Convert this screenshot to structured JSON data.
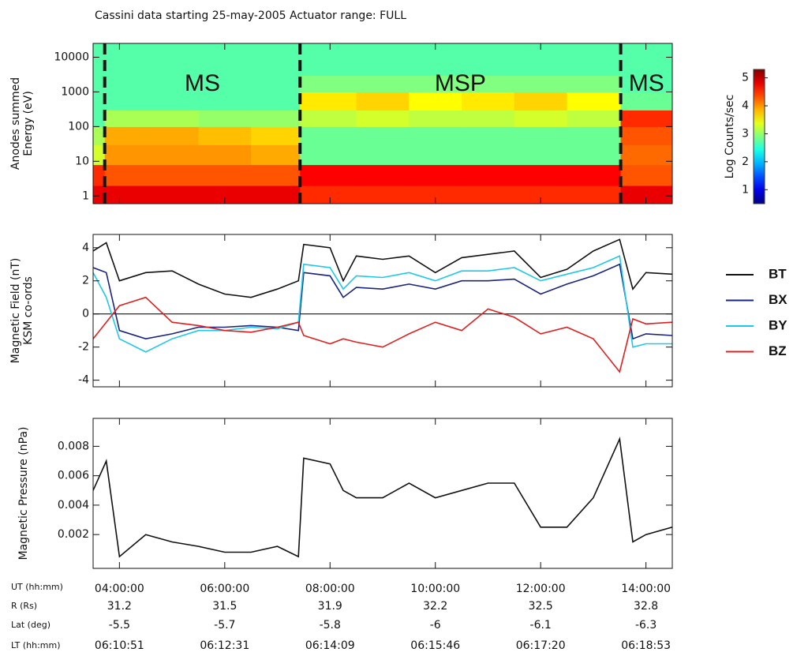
{
  "title": "Cassini data starting 25-may-2005  Actuator range: FULL",
  "chart_data": [
    {
      "type": "heatmap",
      "y_label": [
        "Anodes summed",
        "Energy (eV)"
      ],
      "ylog": true,
      "xlim": [
        3.5,
        14.5
      ],
      "xticks": [
        4,
        6,
        8,
        10,
        12,
        14
      ],
      "ylim": [
        0.6,
        25000
      ],
      "yticks": [
        1,
        10,
        100,
        1000,
        10000
      ],
      "x_edges": [
        3.5,
        3.72,
        4.5,
        5.5,
        6.5,
        7.43,
        8.5,
        9.5,
        10.5,
        11.5,
        12.5,
        13.52,
        14.5
      ],
      "y_edges": [
        0.6,
        2,
        8,
        30,
        100,
        300,
        1000,
        3000,
        25000
      ],
      "z": [
        [
          4.8,
          4.8,
          4.8,
          4.8,
          4.8,
          4.5,
          4.5,
          4.5,
          4.5,
          4.5,
          4.5,
          4.8
        ],
        [
          4.5,
          4.3,
          4.3,
          4.3,
          4.3,
          4.7,
          4.7,
          4.7,
          4.7,
          4.7,
          4.7,
          4.3
        ],
        [
          3.3,
          4.0,
          4.0,
          4.0,
          3.9,
          2.8,
          2.8,
          2.8,
          2.8,
          2.8,
          2.8,
          4.2
        ],
        [
          3.1,
          3.9,
          3.9,
          3.8,
          3.7,
          2.8,
          2.8,
          2.8,
          2.8,
          2.8,
          2.8,
          4.3
        ],
        [
          2.7,
          3.1,
          3.1,
          3.0,
          3.0,
          3.2,
          3.3,
          3.2,
          3.2,
          3.3,
          3.2,
          4.5
        ],
        [
          2.7,
          2.7,
          2.7,
          2.7,
          2.7,
          3.6,
          3.7,
          3.5,
          3.6,
          3.7,
          3.5,
          2.8
        ],
        [
          2.7,
          2.7,
          2.7,
          2.7,
          2.7,
          2.9,
          2.9,
          2.9,
          2.9,
          2.9,
          2.9,
          2.7
        ],
        [
          2.7,
          2.7,
          2.7,
          2.7,
          2.7,
          2.7,
          2.7,
          2.7,
          2.7,
          2.7,
          2.7,
          2.7
        ]
      ],
      "colorbar": {
        "label": "Log Counts/sec",
        "lim": [
          0.5,
          5.3
        ],
        "ticks": [
          1,
          2,
          3,
          4,
          5
        ]
      },
      "regions": [
        {
          "label": "MS",
          "start": 3.72,
          "end": 7.43
        },
        {
          "label": "MSP",
          "start": 7.43,
          "end": 13.52
        },
        {
          "label": "MS",
          "start": 13.52,
          "end": 14.5
        }
      ]
    },
    {
      "type": "line",
      "y_label": [
        "Magnetic Field (nT)",
        "KSM co-ords"
      ],
      "xlim": [
        3.5,
        14.5
      ],
      "xticks": [
        4,
        6,
        8,
        10,
        12,
        14
      ],
      "ylim": [
        -4.4,
        4.8
      ],
      "yticks": [
        -4,
        -2,
        0,
        2,
        4
      ],
      "zero_line": true,
      "x": [
        3.5,
        3.75,
        4,
        4.5,
        5,
        5.5,
        6,
        6.5,
        7,
        7.4,
        7.5,
        8,
        8.25,
        8.5,
        9,
        9.5,
        10,
        10.5,
        11,
        11.5,
        12,
        12.5,
        13,
        13.5,
        13.75,
        14,
        14.5
      ],
      "series": [
        {
          "name": "BT",
          "color": "#111111",
          "values": [
            3.8,
            4.3,
            2,
            2.5,
            2.6,
            1.8,
            1.2,
            1.0,
            1.5,
            2.0,
            4.2,
            4.0,
            2.0,
            3.5,
            3.3,
            3.5,
            2.5,
            3.4,
            3.6,
            3.8,
            2.2,
            2.7,
            3.8,
            4.5,
            1.5,
            2.5,
            2.4
          ]
        },
        {
          "name": "BX",
          "color": "#1a237e",
          "values": [
            2.8,
            2.5,
            -1.0,
            -1.5,
            -1.2,
            -0.8,
            -0.8,
            -0.7,
            -0.8,
            -1.0,
            2.5,
            2.3,
            1.0,
            1.6,
            1.5,
            1.8,
            1.5,
            2.0,
            2.0,
            2.1,
            1.2,
            1.8,
            2.3,
            3.0,
            -1.5,
            -1.2,
            -1.3
          ]
        },
        {
          "name": "BY",
          "color": "#1ec8e8",
          "values": [
            2.5,
            1.0,
            -1.5,
            -2.3,
            -1.5,
            -1.0,
            -1.0,
            -0.8,
            -0.9,
            -0.5,
            3.0,
            2.8,
            1.5,
            2.3,
            2.2,
            2.5,
            2.0,
            2.6,
            2.6,
            2.8,
            2.0,
            2.4,
            2.8,
            3.5,
            -2.0,
            -1.8,
            -1.8
          ]
        },
        {
          "name": "BZ",
          "color": "#e02020",
          "values": [
            -1.5,
            -0.5,
            0.5,
            1.0,
            -0.5,
            -0.7,
            -1.0,
            -1.1,
            -0.8,
            -0.5,
            -1.3,
            -1.8,
            -1.5,
            -1.7,
            -2.0,
            -1.2,
            -0.5,
            -1.0,
            0.3,
            -0.2,
            -1.2,
            -0.8,
            -1.5,
            -3.5,
            -0.3,
            -0.6,
            -0.5
          ]
        }
      ]
    },
    {
      "type": "line",
      "y_label": [
        "Magnetic Pressure (nPa)"
      ],
      "xlim": [
        3.5,
        14.5
      ],
      "xticks": [
        {
          "value": 4,
          "label": "04:00:00"
        },
        {
          "value": 6,
          "label": "06:00:00"
        },
        {
          "value": 8,
          "label": "08:00:00"
        },
        {
          "value": 10,
          "label": "10:00:00"
        },
        {
          "value": 12,
          "label": "12:00:00"
        },
        {
          "value": 14,
          "label": "14:00:00"
        }
      ],
      "ylim": [
        -0.0003,
        0.0099
      ],
      "yticks": [
        0.002,
        0.004,
        0.006,
        0.008
      ],
      "x": [
        3.5,
        3.75,
        4,
        4.5,
        5,
        5.5,
        6,
        6.5,
        7,
        7.4,
        7.5,
        8,
        8.25,
        8.5,
        9,
        9.5,
        10,
        10.5,
        11,
        11.5,
        12,
        12.5,
        13,
        13.5,
        13.75,
        14,
        14.5
      ],
      "series": [
        {
          "color": "#111111",
          "values": [
            0.005,
            0.007,
            0.0005,
            0.002,
            0.0015,
            0.0012,
            0.0008,
            0.0008,
            0.0012,
            0.0005,
            0.0072,
            0.0068,
            0.005,
            0.0045,
            0.0045,
            0.0055,
            0.0045,
            0.005,
            0.0055,
            0.0055,
            0.0025,
            0.0025,
            0.0045,
            0.0085,
            0.0015,
            0.002,
            0.0025
          ]
        }
      ]
    }
  ],
  "ephemeris": [
    {
      "label": "UT (hh:mm)"
    },
    {
      "label": "R (Rs)",
      "values": [
        31.2,
        31.5,
        31.9,
        32.2,
        32.5,
        32.8
      ]
    },
    {
      "label": "Lat (deg)",
      "values": [
        -5.5,
        -5.7,
        -5.8,
        -6.0,
        -6.1,
        -6.3
      ]
    },
    {
      "label": "LT (hh:mm)",
      "values": [
        "06:10:51",
        "06:12:31",
        "06:14:09",
        "06:15:46",
        "06:17:20",
        "06:18:53"
      ]
    }
  ]
}
